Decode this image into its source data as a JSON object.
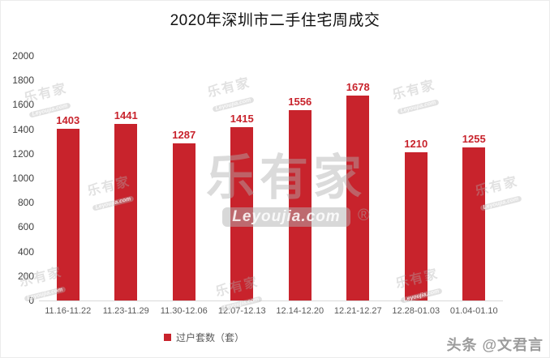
{
  "header": {
    "title": "2020年深圳市二手住宅周成交"
  },
  "chart_data": {
    "type": "bar",
    "title": "2020年深圳市二手住宅周成交",
    "categories": [
      "11.16-11.22",
      "11.23-11.29",
      "11.30-12.06",
      "12.07-12.13",
      "12.14-12.20",
      "12.21-12.27",
      "12.28-01.03",
      "01.04-01.10"
    ],
    "values": [
      1403,
      1441,
      1287,
      1415,
      1556,
      1678,
      1210,
      1255
    ],
    "series": [
      {
        "name": "过户套数（套）",
        "values": [
          1403,
          1441,
          1287,
          1415,
          1556,
          1678,
          1210,
          1255
        ]
      }
    ],
    "xlabel": "",
    "ylabel": "",
    "ylim": [
      0,
      2000
    ],
    "y_ticks": [
      0,
      200,
      400,
      600,
      800,
      1000,
      1200,
      1400,
      1600,
      1800,
      2000
    ],
    "grid": false,
    "legend_position": "bottom",
    "bar_color": "#c8232c",
    "value_label_color": "#c8232c",
    "axis_line_color": "#d9d9d9"
  },
  "legend": {
    "label": "过户套数（套）",
    "swatch_color": "#c8232c"
  },
  "watermark": {
    "brand": "乐有家",
    "domain": "Leyoujia.com",
    "registered": "®"
  },
  "byline": {
    "text": "头条 @文君言"
  }
}
